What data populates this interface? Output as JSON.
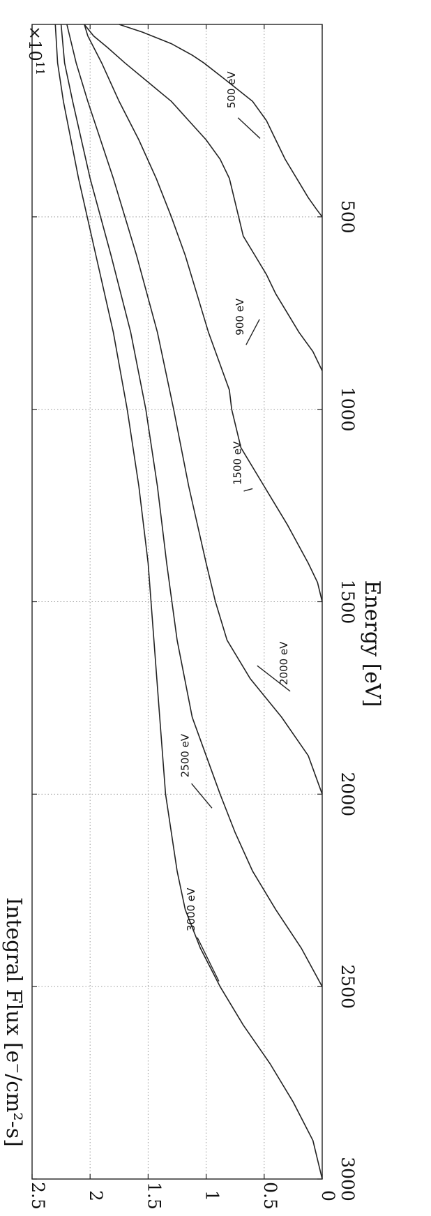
{
  "chart_data": {
    "type": "line",
    "xlabel": "Energy [eV]",
    "ylabel": "Integral Flux [e⁻/cm²-s]",
    "y_multiplier": "×10",
    "y_multiplier_exponent": "11",
    "xlim": [
      0,
      3000
    ],
    "ylim": [
      0,
      2.5
    ],
    "x_ticks": [
      500,
      1000,
      1500,
      2000,
      2500,
      3000
    ],
    "x_tick_labels": [
      "500",
      "1000",
      "1500",
      "2000",
      "2500",
      "3000"
    ],
    "y_ticks": [
      0,
      0.5,
      1,
      1.5,
      2,
      2.5
    ],
    "y_tick_labels": [
      "0",
      "0.5",
      "1",
      "1.5",
      "2",
      "2.5"
    ],
    "grid": true,
    "orientation": "rotated 90° clockwise",
    "series": [
      {
        "name": "500 eV",
        "label_at": [
          170,
          0.75
        ],
        "x": [
          0,
          20,
          50,
          80,
          100,
          140,
          200,
          250,
          300,
          350,
          400,
          450,
          480,
          500
        ],
        "y": [
          1.75,
          1.55,
          1.3,
          1.12,
          1.02,
          0.85,
          0.6,
          0.48,
          0.4,
          0.32,
          0.22,
          0.12,
          0.05,
          0
        ]
      },
      {
        "name": "900 eV",
        "label_at": [
          760,
          0.68
        ],
        "x": [
          0,
          30,
          60,
          100,
          150,
          200,
          250,
          300,
          350,
          400,
          500,
          550,
          600,
          650,
          700,
          750,
          800,
          850,
          900
        ],
        "y": [
          2.05,
          1.97,
          1.85,
          1.7,
          1.5,
          1.3,
          1.15,
          1.0,
          0.88,
          0.8,
          0.72,
          0.68,
          0.58,
          0.48,
          0.4,
          0.3,
          0.2,
          0.08,
          0
        ]
      },
      {
        "name": "1500 eV",
        "label_at": [
          1140,
          0.7
        ],
        "x": [
          0,
          30,
          100,
          200,
          300,
          400,
          500,
          600,
          700,
          800,
          850,
          900,
          950,
          1000,
          1100,
          1200,
          1300,
          1400,
          1450,
          1500
        ],
        "y": [
          2.05,
          2.02,
          1.9,
          1.75,
          1.58,
          1.43,
          1.3,
          1.18,
          1.08,
          0.98,
          0.92,
          0.86,
          0.8,
          0.78,
          0.7,
          0.5,
          0.3,
          0.12,
          0.04,
          0
        ]
      },
      {
        "name": "2000 eV",
        "label_at": [
          1660,
          0.3
        ],
        "x": [
          0,
          100,
          200,
          400,
          600,
          800,
          1000,
          1200,
          1400,
          1500,
          1600,
          1700,
          1800,
          1900,
          2000
        ],
        "y": [
          2.2,
          2.12,
          2.02,
          1.8,
          1.6,
          1.42,
          1.28,
          1.15,
          1.0,
          0.92,
          0.82,
          0.62,
          0.35,
          0.12,
          0
        ]
      },
      {
        "name": "2500 eV",
        "label_at": [
          1900,
          1.15
        ],
        "x": [
          0,
          100,
          200,
          400,
          600,
          800,
          1000,
          1200,
          1400,
          1600,
          1800,
          1900,
          2000,
          2100,
          2200,
          2300,
          2400,
          2500
        ],
        "y": [
          2.25,
          2.22,
          2.15,
          2.0,
          1.82,
          1.65,
          1.52,
          1.42,
          1.34,
          1.25,
          1.12,
          1.0,
          0.88,
          0.75,
          0.6,
          0.4,
          0.18,
          0
        ]
      },
      {
        "name": "3000 eV",
        "label_at": [
          2300,
          1.1
        ],
        "x": [
          0,
          100,
          200,
          400,
          600,
          800,
          1000,
          1200,
          1400,
          1600,
          1800,
          2000,
          2200,
          2300,
          2400,
          2500,
          2600,
          2700,
          2800,
          2900,
          3000
        ],
        "y": [
          2.3,
          2.28,
          2.23,
          2.1,
          1.95,
          1.8,
          1.68,
          1.58,
          1.5,
          1.45,
          1.4,
          1.35,
          1.25,
          1.18,
          1.05,
          0.88,
          0.68,
          0.45,
          0.25,
          0.08,
          0
        ]
      }
    ]
  }
}
